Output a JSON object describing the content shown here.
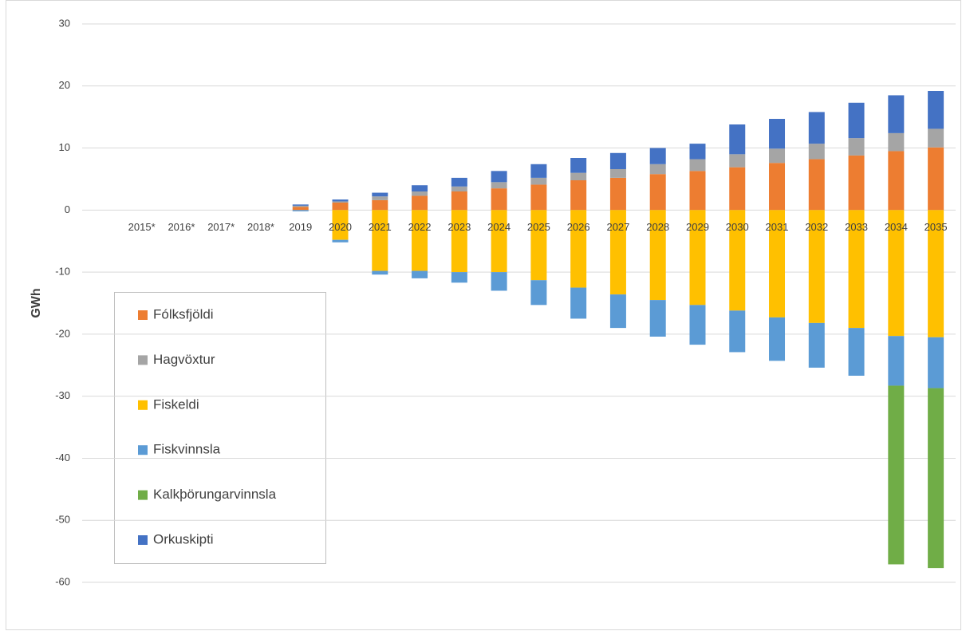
{
  "chart_data": {
    "type": "stacked_bar",
    "ylabel": "GWh",
    "categories": [
      null,
      "2015*",
      "2016*",
      "2017*",
      "2018*",
      "2019",
      "2020",
      "2021",
      "2022",
      "2023",
      "2024",
      "2025",
      "2026",
      "2027",
      "2028",
      "2029",
      "2030",
      "2031",
      "2032",
      "2033",
      "2034",
      "2035"
    ],
    "series": [
      {
        "name": "Fólksfjöldi",
        "color": "#ED7D31",
        "values": [
          null,
          null,
          null,
          null,
          null,
          0.5,
          1.2,
          1.6,
          2.3,
          3.0,
          3.5,
          4.1,
          4.8,
          5.2,
          5.8,
          6.3,
          6.9,
          7.6,
          8.2,
          8.8,
          9.5,
          10.1
        ]
      },
      {
        "name": "Hagvöxtur",
        "color": "#A5A5A5",
        "values": [
          null,
          null,
          null,
          null,
          null,
          0.2,
          0.2,
          0.6,
          0.7,
          0.8,
          1.0,
          1.1,
          1.2,
          1.4,
          1.6,
          1.9,
          2.1,
          2.3,
          2.5,
          2.8,
          2.9,
          3.0
        ]
      },
      {
        "name": "Fiskeldi",
        "color": "#FFC000",
        "values": [
          null,
          null,
          null,
          null,
          null,
          null,
          -4.8,
          -9.8,
          -9.8,
          -10.0,
          -10.0,
          -11.3,
          -12.5,
          -13.6,
          -14.5,
          -15.3,
          -16.2,
          -17.3,
          -18.2,
          -19.0,
          -20.3,
          -20.5
        ]
      },
      {
        "name": "Fiskvinnsla",
        "color": "#5B9BD5",
        "values": [
          null,
          null,
          null,
          null,
          null,
          -0.2,
          -0.4,
          -0.6,
          -1.2,
          -1.7,
          -3.0,
          -4.0,
          -5.0,
          -5.4,
          -5.9,
          -6.4,
          -6.7,
          -7.0,
          -7.2,
          -7.7,
          -8.0,
          -8.2
        ]
      },
      {
        "name": "Kalkþörungarvinnsla",
        "color": "#70AD47",
        "values": [
          null,
          null,
          null,
          null,
          null,
          null,
          null,
          null,
          null,
          null,
          null,
          null,
          null,
          null,
          null,
          null,
          null,
          null,
          null,
          null,
          -28.8,
          -29.0
        ]
      },
      {
        "name": "Orkuskipti",
        "color": "#4472C4",
        "values": [
          null,
          null,
          null,
          null,
          null,
          0.2,
          0.3,
          0.6,
          1.0,
          1.4,
          1.8,
          2.2,
          2.4,
          2.6,
          2.6,
          2.5,
          4.8,
          4.8,
          5.1,
          5.7,
          6.1,
          6.1
        ]
      }
    ],
    "ylim": [
      -60,
      30
    ],
    "yticks": [
      -60,
      -50,
      -40,
      -30,
      -20,
      -10,
      0,
      10,
      20,
      30
    ],
    "grid": true
  }
}
